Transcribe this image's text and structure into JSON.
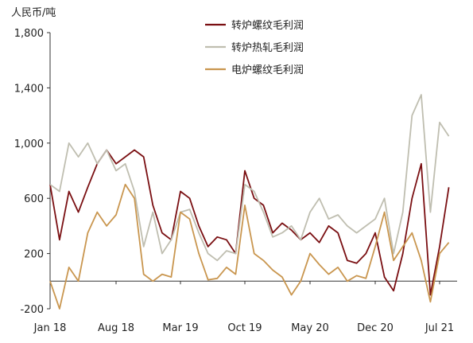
{
  "chart_data": {
    "type": "line",
    "unit_label": "人民币/吨",
    "ylim": [
      -200,
      1800
    ],
    "yticks": [
      -200,
      200,
      600,
      1000,
      1400,
      1800
    ],
    "ytick_labels": [
      "-200",
      "200",
      "600",
      "1,000",
      "1,400",
      "1,800"
    ],
    "x_tick_labels": [
      "Jan 18",
      "Aug 18",
      "Mar 19",
      "Oct 19",
      "May 20",
      "Dec 20",
      "Jul 21"
    ],
    "x_tick_dates": [
      "2018-01",
      "2018-08",
      "2019-03",
      "2019-10",
      "2020-05",
      "2020-12",
      "2021-07"
    ],
    "x_range": [
      "2018-01",
      "2021-08"
    ],
    "grid": false,
    "legend_position": "top-center",
    "colors": {
      "bof_rebar": "#7a0f12",
      "bof_hrc": "#bfbeb0",
      "eaf_rebar": "#c9964f",
      "axis": "#333333"
    },
    "series": [
      {
        "key": "bof_rebar",
        "name": "转炉螺纹毛利润",
        "x": [
          "2018-01",
          "2018-02",
          "2018-03",
          "2018-04",
          "2018-05",
          "2018-06",
          "2018-07",
          "2018-08",
          "2018-09",
          "2018-10",
          "2018-11",
          "2018-12",
          "2019-01",
          "2019-02",
          "2019-03",
          "2019-04",
          "2019-05",
          "2019-06",
          "2019-07",
          "2019-08",
          "2019-09",
          "2019-10",
          "2019-11",
          "2019-12",
          "2020-01",
          "2020-02",
          "2020-03",
          "2020-04",
          "2020-05",
          "2020-06",
          "2020-07",
          "2020-08",
          "2020-09",
          "2020-10",
          "2020-11",
          "2020-12",
          "2021-01",
          "2021-02",
          "2021-03",
          "2021-04",
          "2021-05",
          "2021-06",
          "2021-07",
          "2021-08"
        ],
        "values": [
          700,
          300,
          650,
          500,
          680,
          850,
          950,
          850,
          900,
          950,
          900,
          550,
          350,
          300,
          650,
          600,
          400,
          250,
          320,
          300,
          200,
          800,
          600,
          550,
          350,
          420,
          370,
          300,
          350,
          280,
          400,
          350,
          150,
          130,
          200,
          350,
          30,
          -70,
          200,
          600,
          850,
          -100,
          250,
          680
        ]
      },
      {
        "key": "bof_hrc",
        "name": "转炉热轧毛利润",
        "x": [
          "2018-01",
          "2018-02",
          "2018-03",
          "2018-04",
          "2018-05",
          "2018-06",
          "2018-07",
          "2018-08",
          "2018-09",
          "2018-10",
          "2018-11",
          "2018-12",
          "2019-01",
          "2019-02",
          "2019-03",
          "2019-04",
          "2019-05",
          "2019-06",
          "2019-07",
          "2019-08",
          "2019-09",
          "2019-10",
          "2019-11",
          "2019-12",
          "2020-01",
          "2020-02",
          "2020-03",
          "2020-04",
          "2020-05",
          "2020-06",
          "2020-07",
          "2020-08",
          "2020-09",
          "2020-10",
          "2020-11",
          "2020-12",
          "2021-01",
          "2021-02",
          "2021-03",
          "2021-04",
          "2021-05",
          "2021-06",
          "2021-07",
          "2021-08"
        ],
        "values": [
          700,
          650,
          1000,
          900,
          1000,
          850,
          950,
          800,
          850,
          650,
          250,
          500,
          200,
          300,
          500,
          520,
          350,
          200,
          150,
          220,
          200,
          700,
          650,
          500,
          320,
          350,
          400,
          300,
          500,
          600,
          450,
          480,
          400,
          350,
          400,
          450,
          600,
          200,
          500,
          1200,
          1350,
          500,
          1150,
          1050
        ]
      },
      {
        "key": "eaf_rebar",
        "name": "电炉螺纹毛利润",
        "x": [
          "2018-01",
          "2018-02",
          "2018-03",
          "2018-04",
          "2018-05",
          "2018-06",
          "2018-07",
          "2018-08",
          "2018-09",
          "2018-10",
          "2018-11",
          "2018-12",
          "2019-01",
          "2019-02",
          "2019-03",
          "2019-04",
          "2019-05",
          "2019-06",
          "2019-07",
          "2019-08",
          "2019-09",
          "2019-10",
          "2019-11",
          "2019-12",
          "2020-01",
          "2020-02",
          "2020-03",
          "2020-04",
          "2020-05",
          "2020-06",
          "2020-07",
          "2020-08",
          "2020-09",
          "2020-10",
          "2020-11",
          "2020-12",
          "2021-01",
          "2021-02",
          "2021-03",
          "2021-04",
          "2021-05",
          "2021-06",
          "2021-07",
          "2021-08"
        ],
        "values": [
          0,
          -200,
          100,
          0,
          350,
          500,
          400,
          480,
          700,
          600,
          50,
          0,
          50,
          30,
          500,
          450,
          200,
          10,
          20,
          100,
          50,
          550,
          200,
          150,
          80,
          30,
          -100,
          0,
          200,
          120,
          50,
          100,
          0,
          40,
          20,
          250,
          500,
          150,
          250,
          350,
          150,
          -150,
          200,
          280
        ]
      }
    ]
  }
}
